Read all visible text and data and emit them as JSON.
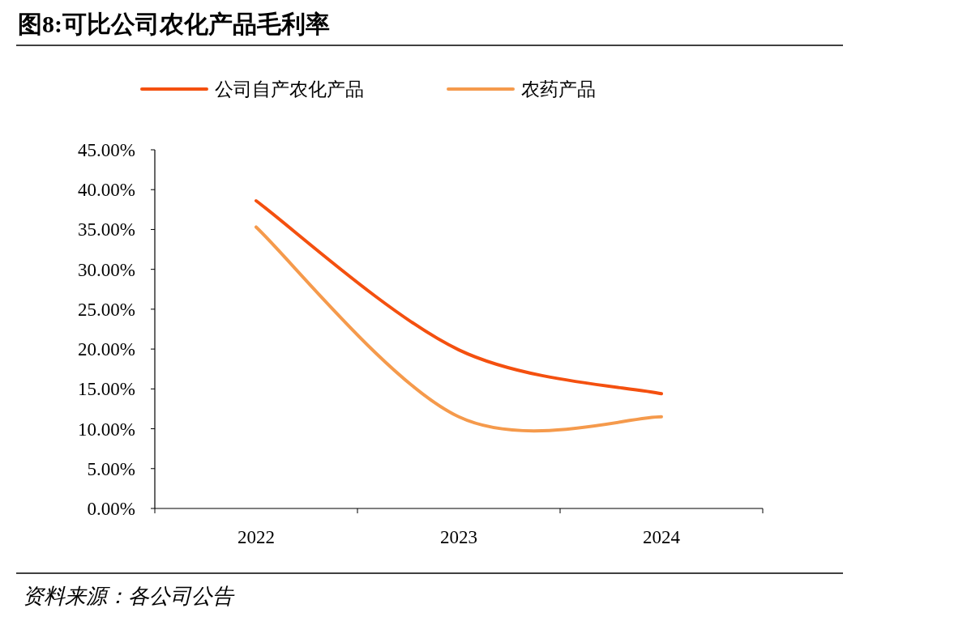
{
  "chart_data": {
    "type": "line",
    "title": "图8:可比公司农化产品毛利率",
    "categories": [
      "2022",
      "2023",
      "2024"
    ],
    "series": [
      {
        "name": "公司自产农化产品",
        "color": "#f4500f",
        "values": [
          38.6,
          19.9,
          14.4
        ]
      },
      {
        "name": "农药产品",
        "color": "#f59a4c",
        "values": [
          35.3,
          11.5,
          11.5
        ]
      }
    ],
    "ylim": [
      0,
      45
    ],
    "yticks": [
      {
        "value": 0,
        "label": "0.00%"
      },
      {
        "value": 5,
        "label": "5.00%"
      },
      {
        "value": 10,
        "label": "10.00%"
      },
      {
        "value": 15,
        "label": "15.00%"
      },
      {
        "value": 20,
        "label": "20.00%"
      },
      {
        "value": 25,
        "label": "25.00%"
      },
      {
        "value": 30,
        "label": "30.00%"
      },
      {
        "value": 35,
        "label": "35.00%"
      },
      {
        "value": 40,
        "label": "40.00%"
      },
      {
        "value": 45,
        "label": "45.00%"
      }
    ],
    "legend": "top",
    "grid": false,
    "annotations": [
      "资料来源：各公司公告"
    ]
  }
}
